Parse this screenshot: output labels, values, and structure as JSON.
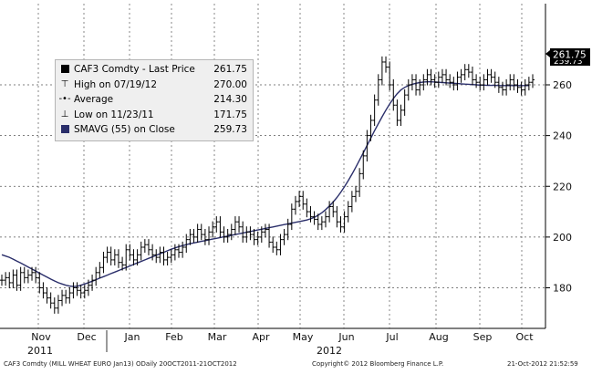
{
  "chart_data": {
    "type": "line",
    "title": "CAF3 Comdty - Last Price",
    "ylim": [
      164,
      292
    ],
    "yticks": [
      180,
      200,
      220,
      240,
      260
    ],
    "ytick_labels": [
      "180",
      "200",
      "220",
      "240",
      "260"
    ],
    "x_month_labels": [
      "Nov",
      "Dec",
      "Jan",
      "Feb",
      "Mar",
      "Apr",
      "May",
      "Jun",
      "Jul",
      "Aug",
      "Sep",
      "Oct"
    ],
    "x_year_labels": [
      "2011",
      "2012"
    ],
    "last_price_label": "261.75",
    "sma_overlap_label": "259.73",
    "series": [
      {
        "name": "Last Price",
        "values": [
          183,
          184,
          182,
          185,
          181,
          186,
          184,
          185,
          186,
          184,
          180,
          178,
          176,
          174,
          172,
          175,
          177,
          176,
          178,
          180,
          179,
          178,
          179,
          181,
          183,
          186,
          188,
          192,
          194,
          191,
          193,
          190,
          189,
          195,
          193,
          191,
          193,
          196,
          197,
          195,
          193,
          192,
          194,
          191,
          192,
          193,
          195,
          194,
          196,
          199,
          201,
          200,
          203,
          201,
          199,
          202,
          204,
          206,
          202,
          200,
          201,
          203,
          206,
          204,
          200,
          202,
          201,
          199,
          200,
          202,
          203,
          198,
          196,
          195,
          199,
          201,
          205,
          211,
          214,
          216,
          213,
          210,
          208,
          207,
          205,
          206,
          208,
          212,
          210,
          206,
          204,
          208,
          212,
          216,
          218,
          225,
          232,
          240,
          246,
          254,
          262,
          269,
          267,
          260,
          252,
          246,
          250,
          256,
          260,
          262,
          258,
          260,
          262,
          264,
          262,
          261,
          263,
          264,
          262,
          261,
          260,
          263,
          264,
          266,
          265,
          262,
          261,
          260,
          262,
          264,
          263,
          261,
          259,
          258,
          260,
          262,
          260,
          259,
          258,
          260,
          261,
          262
        ]
      },
      {
        "name": "SMAVG (55) on Close",
        "values": [
          193,
          192.5,
          192,
          191.3,
          190.5,
          189.8,
          189,
          188.2,
          187.4,
          186.6,
          185.8,
          185,
          184.2,
          183.4,
          182.7,
          182,
          181.5,
          181,
          180.7,
          180.5,
          180.6,
          181,
          181.5,
          182,
          182.6,
          183.2,
          183.8,
          184.4,
          185,
          185.6,
          186.2,
          186.8,
          187.4,
          188,
          188.6,
          189.2,
          189.8,
          190.4,
          191,
          191.6,
          192.2,
          192.8,
          193.4,
          194,
          194.6,
          195.2,
          195.7,
          196.2,
          196.6,
          197,
          197.4,
          197.7,
          198,
          198.3,
          198.6,
          198.9,
          199.2,
          199.5,
          199.8,
          200.1,
          200.4,
          200.7,
          201,
          201.3,
          201.6,
          201.9,
          202.2,
          202.5,
          202.8,
          203.1,
          203.4,
          203.7,
          204,
          204.3,
          204.6,
          204.9,
          205.2,
          205.5,
          205.8,
          206.1,
          206.4,
          206.7,
          207.2,
          207.8,
          208.6,
          209.6,
          210.8,
          212.2,
          213.8,
          215.6,
          217.6,
          219.8,
          222.2,
          224.8,
          227.5,
          230.3,
          233.2,
          236.1,
          239,
          241.9,
          244.7,
          247.4,
          250,
          252.4,
          254.6,
          256.5,
          258,
          259,
          259.7,
          260.2,
          260.6,
          260.9,
          261.1,
          261.2,
          261.2,
          261.1,
          261,
          260.9,
          260.8,
          260.7,
          260.6,
          260.5,
          260.4,
          260.3,
          260.2,
          260.1,
          260,
          259.9,
          259.9,
          259.8,
          259.8,
          259.8,
          259.7,
          259.7,
          259.7,
          259.7,
          259.7,
          259.7,
          259.7,
          259.7,
          259.7
        ]
      }
    ],
    "legend": [
      {
        "label": "CAF3 Comdty - Last Price",
        "value": "261.75"
      },
      {
        "label": "High on 07/19/12",
        "value": "270.00"
      },
      {
        "label": "Average",
        "value": "214.30"
      },
      {
        "label": "Low on 11/23/11",
        "value": "171.75"
      },
      {
        "label": "SMAVG (55) on Close",
        "value": "259.73"
      }
    ]
  },
  "footer": {
    "left": "CAF3 Comdty (MILL WHEAT EURO  Jan13) ODaily 20OCT2011-21OCT2012",
    "center": "Copyright© 2012 Bloomberg Finance L.P.",
    "right": "21-Oct-2012 21:52:59"
  },
  "colors": {
    "price": "#000000",
    "sma": "#2a2e6a",
    "badge": "#000000",
    "legend_bg": "#efefef"
  }
}
